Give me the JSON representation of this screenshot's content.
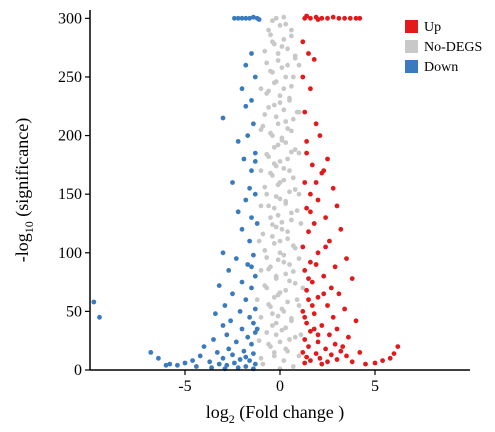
{
  "chart_data": {
    "type": "scatter",
    "title": "",
    "xlabel": {
      "prefix": "log",
      "sub": "2",
      "suffix": " (Fold change )"
    },
    "ylabel": {
      "prefix": "-log",
      "sub": "10",
      "suffix": " (significance)"
    },
    "xlim": [
      -10,
      10
    ],
    "ylim": [
      0,
      302
    ],
    "x_ticks": [
      {
        "v": -5,
        "label": "-5"
      },
      {
        "v": 0,
        "label": "0"
      },
      {
        "v": 5,
        "label": "5"
      }
    ],
    "y_ticks": [
      {
        "v": 0,
        "label": "0"
      },
      {
        "v": 50,
        "label": "50"
      },
      {
        "v": 100,
        "label": "100"
      },
      {
        "v": 150,
        "label": "150"
      },
      {
        "v": 200,
        "label": "200"
      },
      {
        "v": 250,
        "label": "250"
      },
      {
        "v": 300,
        "label": "300"
      }
    ],
    "grid": false,
    "legend_position": "top-right",
    "series": [
      {
        "name": "Up",
        "color": "#e31a1c"
      },
      {
        "name": "No-DEGS",
        "color": "#c8c8c8"
      },
      {
        "name": "Down",
        "color": "#3a7bbf"
      }
    ],
    "points": {
      "Up": [
        [
          1.3,
          300
        ],
        [
          1.6,
          300
        ],
        [
          1.9,
          301
        ],
        [
          2.2,
          300
        ],
        [
          2.5,
          300
        ],
        [
          2.8,
          301
        ],
        [
          3.1,
          300
        ],
        [
          3.4,
          300
        ],
        [
          3.7,
          300
        ],
        [
          4.0,
          300
        ],
        [
          4.2,
          300
        ],
        [
          1.4,
          302
        ],
        [
          2.0,
          299
        ],
        [
          1.2,
          280
        ],
        [
          1.5,
          270
        ],
        [
          1.8,
          265
        ],
        [
          1.2,
          250
        ],
        [
          1.6,
          240
        ],
        [
          1.3,
          220
        ],
        [
          1.9,
          210
        ],
        [
          2.1,
          200
        ],
        [
          1.4,
          195
        ],
        [
          2.5,
          180
        ],
        [
          1.7,
          175
        ],
        [
          2.2,
          168
        ],
        [
          1.3,
          160
        ],
        [
          2.8,
          155
        ],
        [
          1.6,
          150
        ],
        [
          2.0,
          145
        ],
        [
          3.0,
          140
        ],
        [
          1.4,
          138
        ],
        [
          2.4,
          130
        ],
        [
          1.8,
          125
        ],
        [
          3.2,
          120
        ],
        [
          1.5,
          118
        ],
        [
          2.6,
          110
        ],
        [
          1.2,
          105
        ],
        [
          2.0,
          100
        ],
        [
          3.5,
          95
        ],
        [
          1.6,
          92
        ],
        [
          2.9,
          88
        ],
        [
          1.3,
          85
        ],
        [
          2.3,
          80
        ],
        [
          3.8,
          78
        ],
        [
          1.7,
          75
        ],
        [
          2.7,
          70
        ],
        [
          1.4,
          68
        ],
        [
          3.1,
          65
        ],
        [
          2.0,
          62
        ],
        [
          1.5,
          60
        ],
        [
          2.5,
          55
        ],
        [
          3.4,
          52
        ],
        [
          1.2,
          50
        ],
        [
          1.8,
          48
        ],
        [
          2.8,
          45
        ],
        [
          4.0,
          42
        ],
        [
          1.4,
          40
        ],
        [
          2.2,
          38
        ],
        [
          3.0,
          35
        ],
        [
          1.6,
          33
        ],
        [
          2.6,
          30
        ],
        [
          3.6,
          28
        ],
        [
          1.3,
          26
        ],
        [
          2.0,
          24
        ],
        [
          2.9,
          22
        ],
        [
          1.5,
          20
        ],
        [
          2.4,
          18
        ],
        [
          3.2,
          16
        ],
        [
          1.2,
          15
        ],
        [
          1.9,
          14
        ],
        [
          2.7,
          13
        ],
        [
          3.5,
          12
        ],
        [
          1.4,
          11
        ],
        [
          2.1,
          10
        ],
        [
          3.0,
          9
        ],
        [
          1.6,
          8
        ],
        [
          2.5,
          7
        ],
        [
          3.8,
          7
        ],
        [
          1.3,
          6
        ],
        [
          2.2,
          5
        ],
        [
          4.5,
          5
        ],
        [
          5.0,
          6
        ],
        [
          5.4,
          8
        ],
        [
          5.8,
          10
        ],
        [
          6.0,
          14
        ],
        [
          6.2,
          20
        ],
        [
          4.2,
          15
        ],
        [
          3.3,
          20
        ],
        [
          2.0,
          30
        ],
        [
          1.8,
          35
        ],
        [
          1.3,
          45
        ],
        [
          1.7,
          55
        ],
        [
          2.3,
          65
        ],
        [
          1.5,
          78
        ],
        [
          1.9,
          90
        ],
        [
          2.4,
          105
        ],
        [
          1.6,
          135
        ],
        [
          1.9,
          160
        ],
        [
          2.3,
          170
        ],
        [
          1.4,
          185
        ]
      ],
      "No-DEGS": [
        [
          -0.2,
          300
        ],
        [
          0.3,
          295
        ],
        [
          -0.6,
          290
        ],
        [
          0.6,
          285
        ],
        [
          -0.4,
          280
        ],
        [
          0.1,
          276
        ],
        [
          -0.8,
          272
        ],
        [
          0.8,
          268
        ],
        [
          -0.1,
          264
        ],
        [
          0.4,
          260
        ],
        [
          -0.5,
          255
        ],
        [
          0.7,
          250
        ],
        [
          -0.3,
          245
        ],
        [
          0.2,
          240
        ],
        [
          -0.7,
          236
        ],
        [
          0.5,
          232
        ],
        [
          0.0,
          228
        ],
        [
          -0.6,
          224
        ],
        [
          0.9,
          220
        ],
        [
          -0.2,
          216
        ],
        [
          0.3,
          212
        ],
        [
          -0.9,
          208
        ],
        [
          0.6,
          204
        ],
        [
          -0.4,
          200
        ],
        [
          0.1,
          196
        ],
        [
          -0.1,
          192
        ],
        [
          0.8,
          188
        ],
        [
          -0.7,
          184
        ],
        [
          0.4,
          180
        ],
        [
          -0.3,
          176
        ],
        [
          0.2,
          172
        ],
        [
          -0.5,
          168
        ],
        [
          0.7,
          164
        ],
        [
          0.0,
          160
        ],
        [
          -0.8,
          156
        ],
        [
          0.5,
          152
        ],
        [
          -0.2,
          148
        ],
        [
          0.3,
          144
        ],
        [
          -0.6,
          140
        ],
        [
          0.9,
          136
        ],
        [
          -0.1,
          132
        ],
        [
          0.6,
          128
        ],
        [
          -0.4,
          124
        ],
        [
          0.1,
          120
        ],
        [
          -0.9,
          116
        ],
        [
          0.4,
          112
        ],
        [
          -0.3,
          108
        ],
        [
          0.8,
          104
        ],
        [
          0.0,
          100
        ],
        [
          -0.7,
          96
        ],
        [
          0.2,
          92
        ],
        [
          -0.5,
          88
        ],
        [
          0.7,
          84
        ],
        [
          -0.2,
          80
        ],
        [
          0.5,
          76
        ],
        [
          -0.8,
          72
        ],
        [
          0.3,
          68
        ],
        [
          -0.1,
          64
        ],
        [
          0.9,
          60
        ],
        [
          -0.6,
          56
        ],
        [
          0.1,
          52
        ],
        [
          -0.4,
          48
        ],
        [
          0.6,
          44
        ],
        [
          -0.2,
          40
        ],
        [
          0.3,
          36
        ],
        [
          -0.7,
          32
        ],
        [
          0.8,
          28
        ],
        [
          0.0,
          24
        ],
        [
          -0.5,
          20
        ],
        [
          0.4,
          16
        ],
        [
          -0.3,
          12
        ],
        [
          0.2,
          8
        ],
        [
          -0.9,
          5
        ],
        [
          0.7,
          3
        ],
        [
          0.0,
          1
        ],
        [
          -0.3,
          15
        ],
        [
          0.3,
          18
        ],
        [
          -0.6,
          22
        ],
        [
          0.5,
          26
        ],
        [
          -0.2,
          30
        ],
        [
          0.1,
          34
        ],
        [
          -0.4,
          38
        ],
        [
          0.6,
          42
        ],
        [
          -0.1,
          46
        ],
        [
          0.2,
          50
        ],
        [
          -0.5,
          54
        ],
        [
          0.4,
          58
        ],
        [
          -0.3,
          62
        ],
        [
          0.0,
          66
        ],
        [
          -0.7,
          70
        ],
        [
          0.8,
          74
        ],
        [
          -0.2,
          78
        ],
        [
          0.3,
          82
        ],
        [
          -0.6,
          86
        ],
        [
          0.5,
          90
        ],
        [
          -0.1,
          94
        ],
        [
          0.2,
          98
        ],
        [
          -0.8,
          102
        ],
        [
          0.7,
          106
        ],
        [
          0.0,
          110
        ],
        [
          -0.4,
          114
        ],
        [
          0.4,
          118
        ],
        [
          -0.2,
          122
        ],
        [
          0.1,
          126
        ],
        [
          -0.5,
          130
        ],
        [
          0.6,
          134
        ],
        [
          -0.3,
          138
        ],
        [
          0.3,
          142
        ],
        [
          0.0,
          146
        ],
        [
          -0.7,
          150
        ],
        [
          0.8,
          154
        ],
        [
          -0.1,
          158
        ],
        [
          0.2,
          162
        ],
        [
          -0.4,
          166
        ],
        [
          0.5,
          170
        ],
        [
          -0.2,
          174
        ],
        [
          0.0,
          178
        ],
        [
          -0.6,
          182
        ],
        [
          0.6,
          186
        ],
        [
          -0.3,
          190
        ],
        [
          0.3,
          194
        ],
        [
          0.1,
          198
        ],
        [
          -0.5,
          202
        ],
        [
          0.4,
          206
        ],
        [
          -0.1,
          210
        ],
        [
          0.7,
          214
        ],
        [
          -0.8,
          218
        ],
        [
          0.2,
          222
        ],
        [
          -0.3,
          226
        ],
        [
          0.5,
          230
        ],
        [
          0.0,
          234
        ],
        [
          -0.6,
          238
        ],
        [
          0.6,
          242
        ],
        [
          -0.2,
          246
        ],
        [
          0.3,
          250
        ],
        [
          -0.4,
          254
        ],
        [
          0.1,
          258
        ],
        [
          -0.7,
          262
        ],
        [
          0.8,
          266
        ],
        [
          -0.1,
          270
        ],
        [
          0.4,
          274
        ],
        [
          -0.3,
          278
        ],
        [
          0.2,
          282
        ],
        [
          -0.5,
          286
        ],
        [
          0.6,
          290
        ],
        [
          0.0,
          294
        ],
        [
          -0.4,
          298
        ],
        [
          0.2,
          301
        ],
        [
          -1.0,
          10
        ],
        [
          1.0,
          12
        ],
        [
          -1.1,
          25
        ],
        [
          1.1,
          30
        ],
        [
          -1.0,
          45
        ],
        [
          1.0,
          55
        ],
        [
          -1.2,
          60
        ],
        [
          1.2,
          70
        ],
        [
          -1.0,
          85
        ],
        [
          1.0,
          95
        ],
        [
          -1.1,
          110
        ],
        [
          1.1,
          125
        ],
        [
          -1.0,
          140
        ],
        [
          1.0,
          150
        ],
        [
          -1.0,
          170
        ],
        [
          1.0,
          185
        ],
        [
          -1.0,
          205
        ],
        [
          1.0,
          220
        ],
        [
          -1.0,
          240
        ],
        [
          1.0,
          260
        ]
      ],
      "Down": [
        [
          -2.2,
          300
        ],
        [
          -2.0,
          300
        ],
        [
          -1.8,
          300
        ],
        [
          -1.6,
          300
        ],
        [
          -1.4,
          301
        ],
        [
          -1.2,
          300
        ],
        [
          -1.1,
          299
        ],
        [
          -2.4,
          300
        ],
        [
          -1.5,
          270
        ],
        [
          -1.8,
          260
        ],
        [
          -1.3,
          250
        ],
        [
          -2.0,
          240
        ],
        [
          -1.5,
          230
        ],
        [
          -3.0,
          215
        ],
        [
          -1.4,
          210
        ],
        [
          -1.7,
          200
        ],
        [
          -2.2,
          195
        ],
        [
          -1.3,
          185
        ],
        [
          -1.9,
          180
        ],
        [
          -1.5,
          170
        ],
        [
          -2.5,
          160
        ],
        [
          -1.3,
          150
        ],
        [
          -1.8,
          145
        ],
        [
          -2.2,
          135
        ],
        [
          -1.5,
          130
        ],
        [
          -1.2,
          125
        ],
        [
          -2.0,
          120
        ],
        [
          -1.6,
          110
        ],
        [
          -3.0,
          100
        ],
        [
          -1.4,
          98
        ],
        [
          -2.3,
          95
        ],
        [
          -1.7,
          90
        ],
        [
          -2.7,
          85
        ],
        [
          -1.3,
          80
        ],
        [
          -2.0,
          75
        ],
        [
          -3.2,
          72
        ],
        [
          -1.5,
          70
        ],
        [
          -2.5,
          65
        ],
        [
          -1.8,
          60
        ],
        [
          -2.9,
          55
        ],
        [
          -1.3,
          52
        ],
        [
          -2.1,
          50
        ],
        [
          -3.4,
          48
        ],
        [
          -1.6,
          45
        ],
        [
          -2.6,
          42
        ],
        [
          -1.4,
          40
        ],
        [
          -3.0,
          38
        ],
        [
          -2.0,
          35
        ],
        [
          -1.3,
          32
        ],
        [
          -2.8,
          30
        ],
        [
          -1.7,
          28
        ],
        [
          -3.5,
          26
        ],
        [
          -2.3,
          24
        ],
        [
          -1.5,
          22
        ],
        [
          -4.0,
          20
        ],
        [
          -2.7,
          18
        ],
        [
          -1.9,
          16
        ],
        [
          -3.3,
          15
        ],
        [
          -1.4,
          14
        ],
        [
          -2.5,
          13
        ],
        [
          -4.2,
          12
        ],
        [
          -1.8,
          11
        ],
        [
          -3.0,
          10
        ],
        [
          -2.1,
          9
        ],
        [
          -4.6,
          8
        ],
        [
          -1.6,
          8
        ],
        [
          -3.7,
          7
        ],
        [
          -2.4,
          6
        ],
        [
          -5.0,
          6
        ],
        [
          -3.2,
          5
        ],
        [
          -1.3,
          5
        ],
        [
          -5.4,
          4
        ],
        [
          -2.8,
          4
        ],
        [
          -4.4,
          3
        ],
        [
          -6.0,
          4
        ],
        [
          -6.8,
          15
        ],
        [
          -6.4,
          10
        ],
        [
          -5.8,
          5
        ],
        [
          -9.8,
          58
        ],
        [
          -9.5,
          45
        ],
        [
          -1.8,
          3
        ],
        [
          -2.2,
          2
        ],
        [
          -1.4,
          1
        ],
        [
          -3.6,
          2
        ],
        [
          -2.9,
          1
        ],
        [
          -1.2,
          35
        ],
        [
          -1.5,
          88
        ],
        [
          -1.6,
          155
        ],
        [
          -1.3,
          178
        ],
        [
          -1.8,
          225
        ]
      ]
    }
  }
}
